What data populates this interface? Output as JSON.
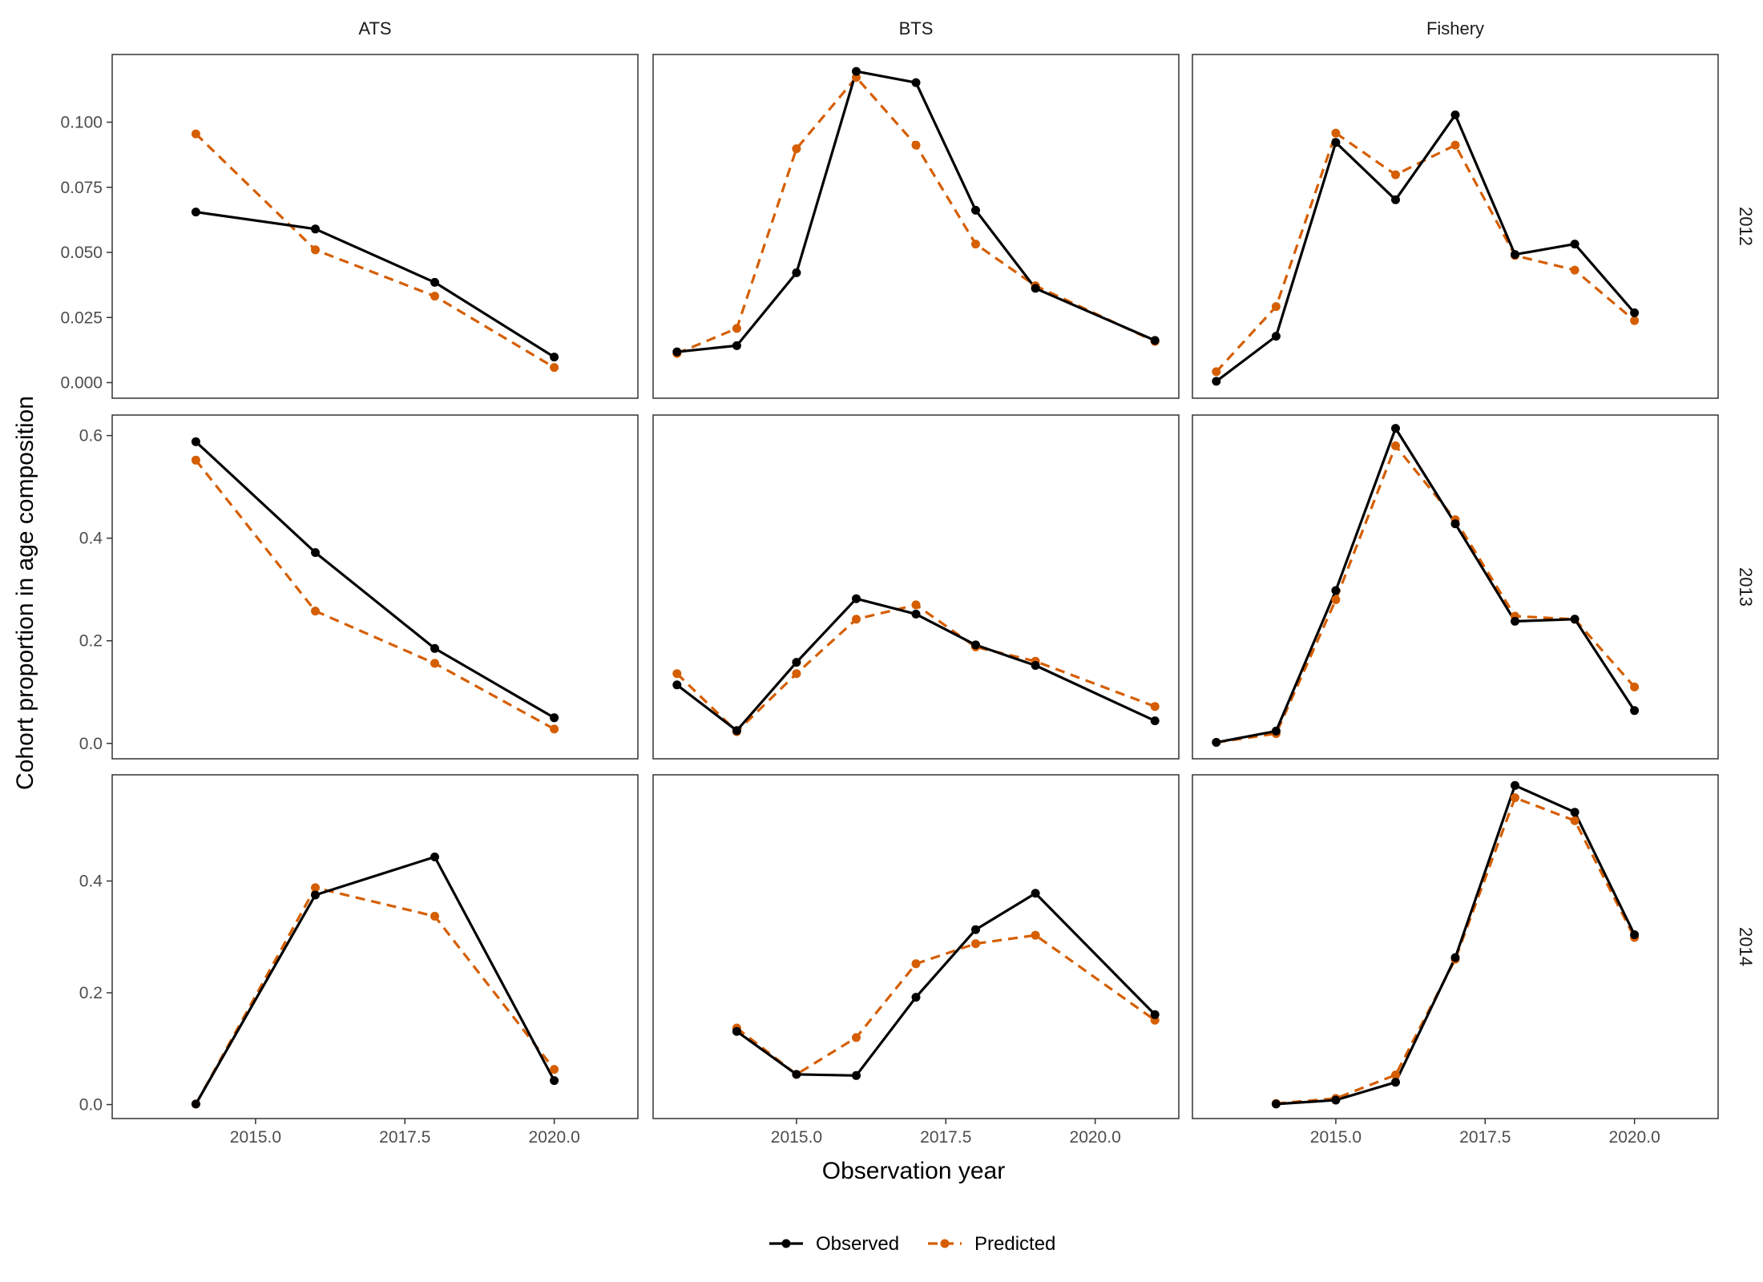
{
  "chart_data": {
    "type": "line",
    "xlabel": "Observation year",
    "ylabel": "Cohort proportion in age composition",
    "columns": [
      "ATS",
      "BTS",
      "Fishery"
    ],
    "rows": [
      "2012",
      "2013",
      "2014"
    ],
    "xlim": [
      2012.6,
      2021.4
    ],
    "x_ticks": [
      2015.0,
      2017.5,
      2020.0
    ],
    "x_tick_labels": [
      "2015.0",
      "2017.5",
      "2020.0"
    ],
    "row_axes": [
      {
        "ylim": [
          -0.006,
          0.126
        ],
        "ticks": [
          0,
          0.025,
          0.05,
          0.075,
          0.1
        ],
        "tick_labels": [
          "0.000",
          "0.025",
          "0.050",
          "0.075",
          "0.100"
        ]
      },
      {
        "ylim": [
          -0.03,
          0.64
        ],
        "ticks": [
          0,
          0.2,
          0.4,
          0.6
        ],
        "tick_labels": [
          "0.0",
          "0.2",
          "0.4",
          "0.6"
        ]
      },
      {
        "ylim": [
          -0.025,
          0.59
        ],
        "ticks": [
          0,
          0.2,
          0.4
        ],
        "tick_labels": [
          "0.0",
          "0.2",
          "0.4"
        ]
      }
    ],
    "legend": {
      "position": "bottom",
      "entries": [
        "Observed",
        "Predicted"
      ]
    },
    "colors": {
      "Observed": "#000000",
      "Predicted": "#D55E00"
    },
    "grid": false,
    "panels": [
      {
        "column": "ATS",
        "row": "2012",
        "series": [
          {
            "name": "Observed",
            "x": [
              2014,
              2016,
              2018,
              2020
            ],
            "y": [
              0.0655,
              0.059,
              0.0385,
              0.0098
            ]
          },
          {
            "name": "Predicted",
            "x": [
              2014,
              2016,
              2018,
              2020
            ],
            "y": [
              0.0955,
              0.051,
              0.0332,
              0.0058
            ]
          }
        ]
      },
      {
        "column": "BTS",
        "row": "2012",
        "series": [
          {
            "name": "Observed",
            "x": [
              2013,
              2014,
              2015,
              2016,
              2017,
              2018,
              2019,
              2021
            ],
            "y": [
              0.0118,
              0.0142,
              0.0422,
              0.1195,
              0.1152,
              0.0662,
              0.0362,
              0.0162
            ]
          },
          {
            "name": "Predicted",
            "x": [
              2013,
              2014,
              2015,
              2016,
              2017,
              2018,
              2019,
              2021
            ],
            "y": [
              0.0112,
              0.0208,
              0.0898,
              0.1172,
              0.0912,
              0.0532,
              0.0372,
              0.0158
            ]
          }
        ]
      },
      {
        "column": "Fishery",
        "row": "2012",
        "series": [
          {
            "name": "Observed",
            "x": [
              2013,
              2014,
              2015,
              2016,
              2017,
              2018,
              2019,
              2020
            ],
            "y": [
              0.0005,
              0.0178,
              0.0922,
              0.0702,
              0.1028,
              0.0492,
              0.0532,
              0.0268
            ]
          },
          {
            "name": "Predicted",
            "x": [
              2013,
              2014,
              2015,
              2016,
              2017,
              2018,
              2019,
              2020
            ],
            "y": [
              0.0042,
              0.0292,
              0.0958,
              0.0798,
              0.0912,
              0.0488,
              0.0432,
              0.0238
            ]
          }
        ]
      },
      {
        "column": "ATS",
        "row": "2013",
        "series": [
          {
            "name": "Observed",
            "x": [
              2014,
              2016,
              2018,
              2020
            ],
            "y": [
              0.588,
              0.372,
              0.185,
              0.05
            ]
          },
          {
            "name": "Predicted",
            "x": [
              2014,
              2016,
              2018,
              2020
            ],
            "y": [
              0.552,
              0.258,
              0.156,
              0.028
            ]
          }
        ]
      },
      {
        "column": "BTS",
        "row": "2013",
        "series": [
          {
            "name": "Observed",
            "x": [
              2013,
              2014,
              2015,
              2016,
              2017,
              2018,
              2019,
              2021
            ],
            "y": [
              0.114,
              0.025,
              0.158,
              0.282,
              0.252,
              0.192,
              0.152,
              0.044
            ]
          },
          {
            "name": "Predicted",
            "x": [
              2013,
              2014,
              2015,
              2016,
              2017,
              2018,
              2019,
              2021
            ],
            "y": [
              0.136,
              0.023,
              0.136,
              0.242,
              0.27,
              0.188,
              0.16,
              0.072
            ]
          }
        ]
      },
      {
        "column": "Fishery",
        "row": "2013",
        "series": [
          {
            "name": "Observed",
            "x": [
              2013,
              2014,
              2015,
              2016,
              2017,
              2018,
              2019,
              2020
            ],
            "y": [
              0.002,
              0.024,
              0.298,
              0.614,
              0.428,
              0.238,
              0.242,
              0.064
            ]
          },
          {
            "name": "Predicted",
            "x": [
              2013,
              2014,
              2015,
              2016,
              2017,
              2018,
              2019,
              2020
            ],
            "y": [
              0.002,
              0.019,
              0.28,
              0.58,
              0.436,
              0.248,
              0.242,
              0.11
            ]
          }
        ]
      },
      {
        "column": "ATS",
        "row": "2014",
        "series": [
          {
            "name": "Observed",
            "x": [
              2014,
              2016,
              2018,
              2020
            ],
            "y": [
              0.001,
              0.375,
              0.443,
              0.043
            ]
          },
          {
            "name": "Predicted",
            "x": [
              2014,
              2016,
              2018,
              2020
            ],
            "y": [
              0.001,
              0.388,
              0.337,
              0.063
            ]
          }
        ]
      },
      {
        "column": "BTS",
        "row": "2014",
        "series": [
          {
            "name": "Observed",
            "x": [
              2014,
              2015,
              2016,
              2017,
              2018,
              2019,
              2021
            ],
            "y": [
              0.131,
              0.054,
              0.052,
              0.192,
              0.313,
              0.378,
              0.161
            ]
          },
          {
            "name": "Predicted",
            "x": [
              2014,
              2015,
              2016,
              2017,
              2018,
              2019,
              2021
            ],
            "y": [
              0.137,
              0.054,
              0.12,
              0.252,
              0.288,
              0.303,
              0.151
            ]
          }
        ]
      },
      {
        "column": "Fishery",
        "row": "2014",
        "series": [
          {
            "name": "Observed",
            "x": [
              2014,
              2015,
              2016,
              2017,
              2018,
              2019,
              2020
            ],
            "y": [
              0.001,
              0.008,
              0.04,
              0.263,
              0.571,
              0.523,
              0.304
            ]
          },
          {
            "name": "Predicted",
            "x": [
              2014,
              2015,
              2016,
              2017,
              2018,
              2019,
              2020
            ],
            "y": [
              0.002,
              0.011,
              0.053,
              0.26,
              0.549,
              0.508,
              0.299
            ]
          }
        ]
      }
    ]
  }
}
